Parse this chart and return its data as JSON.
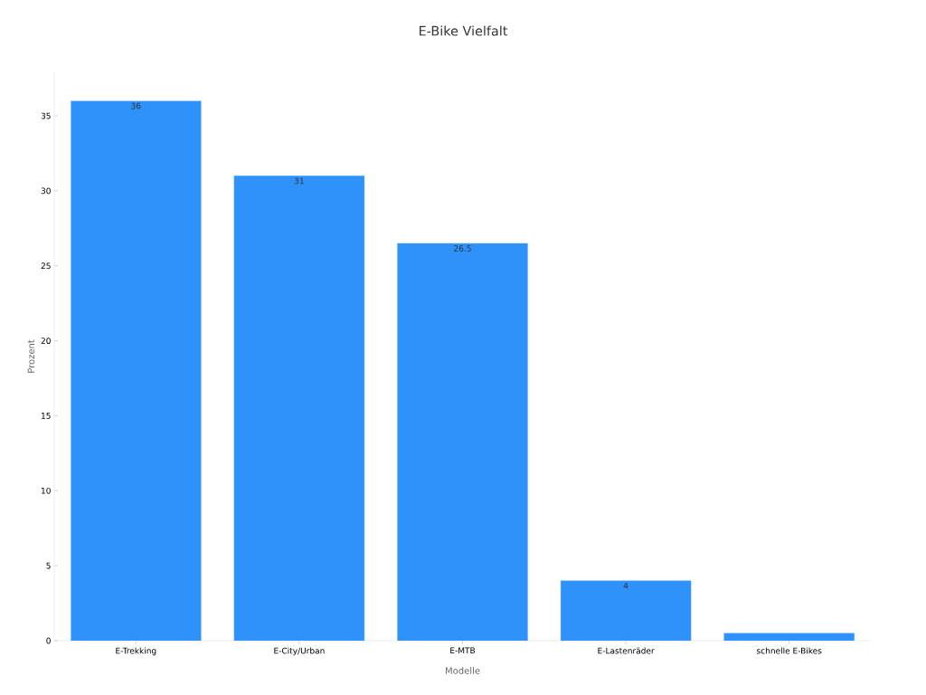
{
  "chart_data": {
    "type": "bar",
    "title": "E-Bike Vielfalt",
    "xlabel": "Modelle",
    "ylabel": "Prozent",
    "categories": [
      "E-Trekking",
      "E-City/Urban",
      "E-MTB",
      "E-Lastenräder",
      "schnelle E-Bikes"
    ],
    "values": [
      36,
      31,
      26.5,
      4,
      0.5
    ],
    "color": "#2e92fa",
    "value_labels": [
      "36",
      "31",
      "26.5",
      "4",
      null
    ],
    "ylim": [
      0,
      37.9
    ],
    "yticks": [
      0,
      5,
      10,
      15,
      20,
      25,
      30,
      35
    ],
    "grid": false
  }
}
